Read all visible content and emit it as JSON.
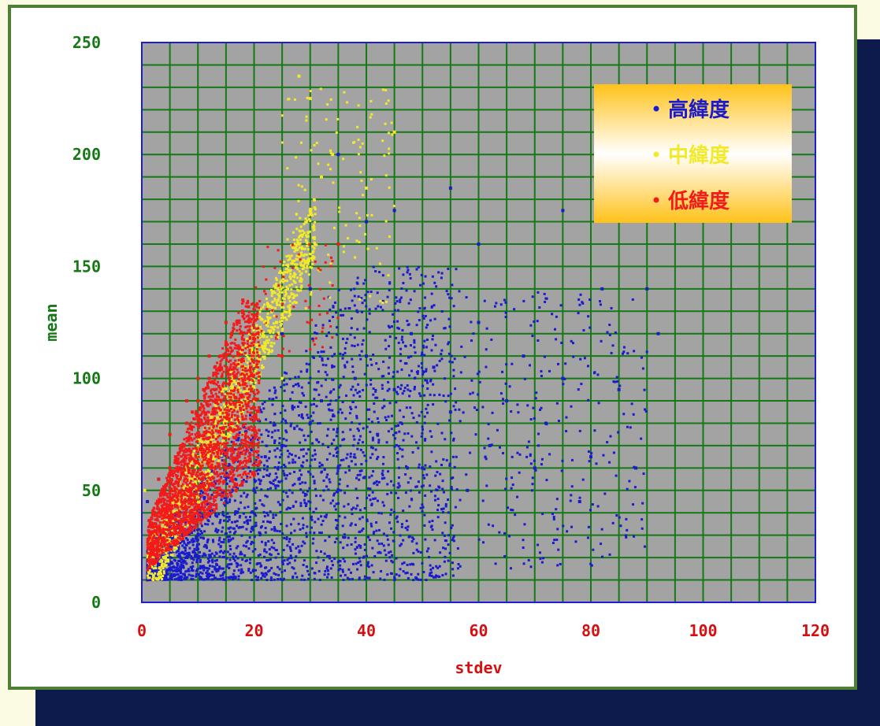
{
  "chart_data": {
    "type": "scatter",
    "xlabel": "stdev",
    "ylabel": "mean",
    "xlim": [
      0,
      120
    ],
    "ylim": [
      0,
      250
    ],
    "xticks": [
      "0",
      "20",
      "40",
      "60",
      "80",
      "100",
      "120"
    ],
    "yticks": [
      "0",
      "50",
      "100",
      "150",
      "200",
      "250"
    ],
    "grid": true,
    "grid_step": {
      "x": 5,
      "y": 10
    },
    "legend_position": "top-right",
    "series": [
      {
        "name": "高緯度",
        "color": "#1a1acf",
        "region": "broad fan from origin: x 1–90, y 10–210, densest near x 5–30, y 10–80",
        "sample_points": [
          [
            2,
            12
          ],
          [
            5,
            15
          ],
          [
            8,
            20
          ],
          [
            10,
            30
          ],
          [
            12,
            40
          ],
          [
            15,
            45
          ],
          [
            18,
            60
          ],
          [
            20,
            50
          ],
          [
            22,
            65
          ],
          [
            25,
            70
          ],
          [
            28,
            55
          ],
          [
            30,
            80
          ],
          [
            32,
            90
          ],
          [
            35,
            60
          ],
          [
            38,
            100
          ],
          [
            40,
            110
          ],
          [
            42,
            75
          ],
          [
            45,
            95
          ],
          [
            48,
            120
          ],
          [
            50,
            60
          ],
          [
            52,
            105
          ],
          [
            55,
            85
          ],
          [
            58,
            50
          ],
          [
            60,
            125
          ],
          [
            62,
            70
          ],
          [
            65,
            90
          ],
          [
            68,
            110
          ],
          [
            70,
            60
          ],
          [
            72,
            80
          ],
          [
            75,
            100
          ],
          [
            78,
            45
          ],
          [
            80,
            65
          ],
          [
            82,
            140
          ],
          [
            85,
            95
          ],
          [
            88,
            60
          ],
          [
            90,
            140
          ],
          [
            92,
            120
          ],
          [
            35,
            200
          ],
          [
            40,
            170
          ],
          [
            45,
            175
          ],
          [
            55,
            185
          ],
          [
            60,
            160
          ],
          [
            75,
            175
          ],
          [
            25,
            120
          ],
          [
            30,
            140
          ],
          [
            3,
            55
          ],
          [
            1,
            45
          ]
        ]
      },
      {
        "name": "中緯度",
        "color": "#f2ea28",
        "region": "band from origin along upper edge: x 1–45, y 10–235",
        "sample_points": [
          [
            2,
            20
          ],
          [
            4,
            30
          ],
          [
            6,
            45
          ],
          [
            8,
            55
          ],
          [
            10,
            65
          ],
          [
            12,
            75
          ],
          [
            14,
            85
          ],
          [
            16,
            95
          ],
          [
            18,
            105
          ],
          [
            20,
            110
          ],
          [
            22,
            115
          ],
          [
            24,
            125
          ],
          [
            26,
            140
          ],
          [
            28,
            160
          ],
          [
            30,
            175
          ],
          [
            32,
            190
          ],
          [
            34,
            200
          ],
          [
            28,
            235
          ],
          [
            30,
            225
          ],
          [
            40,
            185
          ],
          [
            45,
            210
          ],
          [
            20,
            90
          ],
          [
            25,
            100
          ],
          [
            18,
            75
          ],
          [
            15,
            60
          ],
          [
            12,
            55
          ],
          [
            0.5,
            50
          ]
        ]
      },
      {
        "name": "低緯度",
        "color": "#f21a1a",
        "region": "dense wedge: x 1–25, y 10–135",
        "sample_points": [
          [
            1,
            10
          ],
          [
            2,
            25
          ],
          [
            3,
            40
          ],
          [
            4,
            50
          ],
          [
            5,
            60
          ],
          [
            6,
            65
          ],
          [
            7,
            70
          ],
          [
            8,
            80
          ],
          [
            9,
            85
          ],
          [
            10,
            90
          ],
          [
            11,
            95
          ],
          [
            12,
            100
          ],
          [
            13,
            105
          ],
          [
            14,
            110
          ],
          [
            15,
            115
          ],
          [
            16,
            120
          ],
          [
            17,
            125
          ],
          [
            18,
            130
          ],
          [
            19,
            132
          ],
          [
            20,
            128
          ],
          [
            22,
            125
          ],
          [
            24,
            118
          ],
          [
            25,
            110
          ],
          [
            3,
            55
          ],
          [
            5,
            75
          ],
          [
            8,
            90
          ],
          [
            10,
            100
          ],
          [
            12,
            110
          ],
          [
            15,
            125
          ],
          [
            18,
            135
          ],
          [
            28,
            155
          ],
          [
            35,
            160
          ]
        ]
      }
    ]
  },
  "colors": {
    "page_bg": "#fbfbe3",
    "shadow": "#0c1b4b",
    "panel_border": "#4d7f35",
    "plot_bg": "#a3a3a3",
    "plot_border": "#1c1cd1",
    "grid": "#167816",
    "y_tick_color": "#167816",
    "x_tick_color": "#d41010",
    "axis_label_color": "#d41010",
    "legend_gradient_top": "#ffc21a",
    "legend_gradient_mid": "#ffffff",
    "legend_gradient_bottom": "#ffc21a"
  }
}
